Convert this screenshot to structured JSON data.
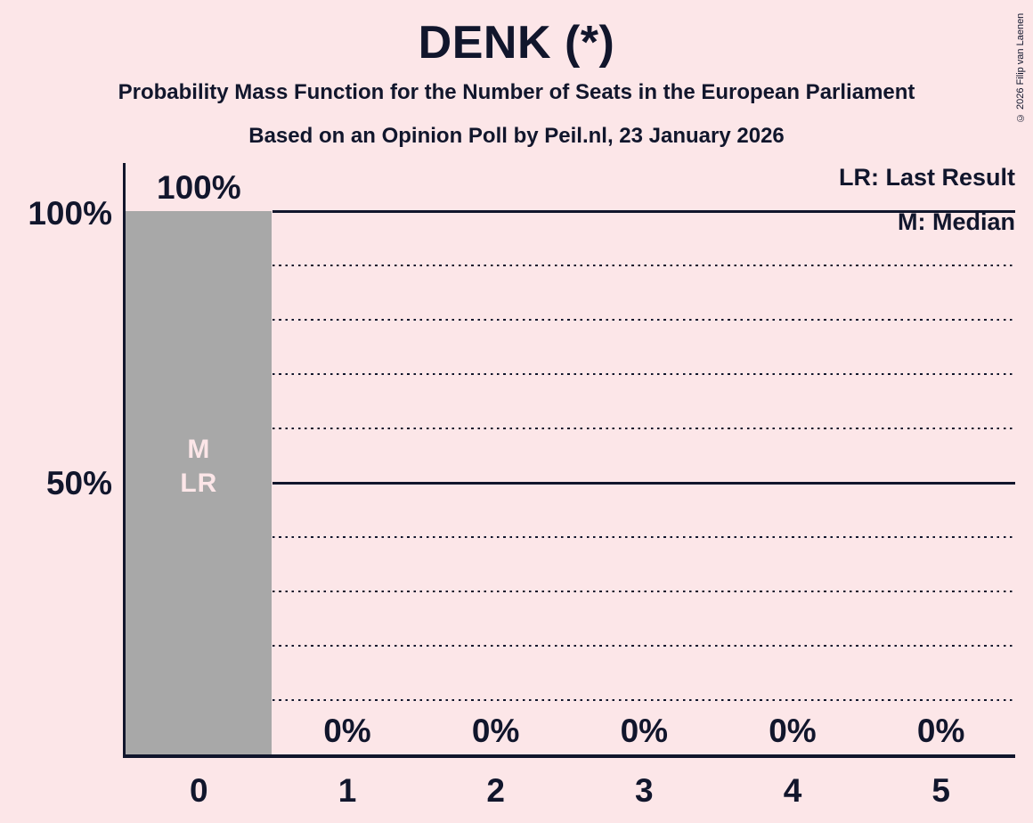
{
  "title": "DENK (*)",
  "subtitle": "Probability Mass Function for the Number of Seats in the European Parliament",
  "poll_line": "Based on an Opinion Poll by Peil.nl, 23 January 2026",
  "copyright": "© 2026 Filip van Laenen",
  "legend": {
    "last_result": "LR: Last Result",
    "median": "M: Median"
  },
  "y_axis_labels": {
    "p100": "100%",
    "p50": "50%"
  },
  "annotations": {
    "median": "M",
    "last_result": "LR"
  },
  "chart_data": {
    "type": "bar",
    "title": "DENK (*)",
    "categories": [
      "0",
      "1",
      "2",
      "3",
      "4",
      "5"
    ],
    "values": [
      100,
      0,
      0,
      0,
      0,
      0
    ],
    "value_labels": [
      "100%",
      "0%",
      "0%",
      "0%",
      "0%",
      "0%"
    ],
    "ylim": [
      0,
      100
    ],
    "ytick_values": [
      100,
      50
    ],
    "ytick_labels": [
      "100%",
      "50%"
    ],
    "solid_gridlines": [
      100,
      50
    ],
    "dotted_gridlines": [
      90,
      80,
      70,
      60,
      40,
      30,
      20,
      10
    ],
    "legend_position": "top-right",
    "median_category": "0",
    "last_result_category": "0",
    "colors": {
      "background": "#fce6e8",
      "bar": "#a8a8a8",
      "ink": "#11162c",
      "bar_annotation": "#fce6e8"
    }
  }
}
